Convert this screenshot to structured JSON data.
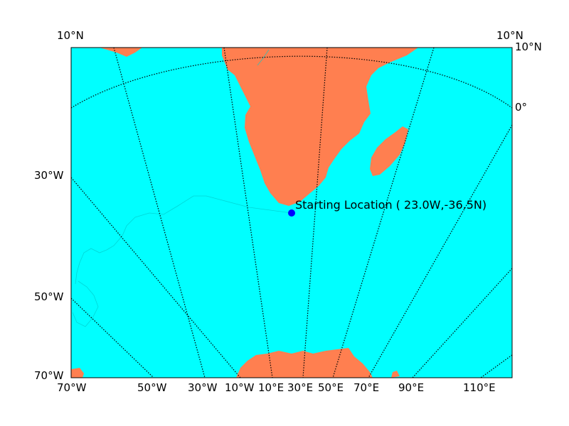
{
  "map": {
    "projection": "polar-conic",
    "colors": {
      "ocean": "#00ffff",
      "land": "#ff7f50",
      "frame": "#000000",
      "graticule": "#000000",
      "track": "#00cccc",
      "marker": "#0000ff"
    },
    "marker": {
      "label": "Starting Location ( 23.0W,-36.5N)"
    },
    "labels": {
      "top_left": "10°N",
      "top_right": "10°N",
      "right": [
        "10°N",
        "0°"
      ],
      "left": [
        "30°W",
        "50°W",
        "70°W"
      ],
      "bottom": [
        "70°W",
        "50°W",
        "30°W",
        "10°W",
        "10°E",
        "30°E",
        "50°E",
        "70°E",
        "90°E",
        "110°E"
      ]
    }
  }
}
